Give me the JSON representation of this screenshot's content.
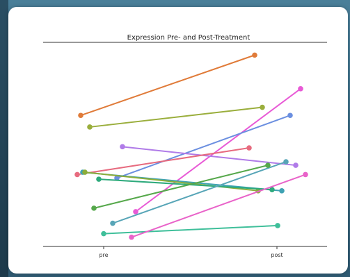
{
  "chart_data": {
    "type": "line",
    "title": "Expression Pre- and Post-Treatment",
    "xlabel": "",
    "ylabel": "",
    "categories": [
      "pre",
      "post"
    ],
    "grid": false,
    "legend": "none",
    "series": [
      {
        "color": "#e07b39",
        "values": [
          7.25,
          9.85
        ]
      },
      {
        "color": "#9aae3c",
        "values": [
          6.75,
          7.6
        ]
      },
      {
        "color": "#e85ad6",
        "values": [
          3.1,
          8.4
        ]
      },
      {
        "color": "#6b8fe0",
        "values": [
          4.55,
          7.25
        ]
      },
      {
        "color": "#b07be8",
        "values": [
          5.9,
          5.1
        ]
      },
      {
        "color": "#e76b7f",
        "values": [
          4.7,
          5.85
        ]
      },
      {
        "color": "#3fa2b3",
        "values": [
          4.8,
          4.0
        ]
      },
      {
        "color": "#8cad3b",
        "values": [
          4.8,
          4.0
        ]
      },
      {
        "color": "#2eaa7c",
        "values": [
          4.5,
          4.05
        ]
      },
      {
        "color": "#57a5b7",
        "values": [
          2.6,
          5.25
        ]
      },
      {
        "color": "#56a84b",
        "values": [
          3.25,
          5.1
        ]
      },
      {
        "color": "#3fbf9a",
        "values": [
          2.15,
          2.5
        ]
      },
      {
        "color": "#e963c9",
        "values": [
          2.0,
          4.7
        ]
      }
    ],
    "x_positions": [
      0.28,
      0.93
    ],
    "ylim": [
      1.6,
      10.4
    ]
  }
}
